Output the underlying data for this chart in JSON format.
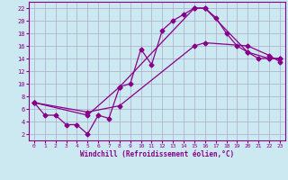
{
  "xlabel": "Windchill (Refroidissement éolien,°C)",
  "bg_color": "#cce8f0",
  "grid_color": "#aaaacc",
  "line_color": "#880088",
  "xlim": [
    -0.5,
    23.5
  ],
  "ylim": [
    1,
    23
  ],
  "xticks": [
    0,
    1,
    2,
    3,
    4,
    5,
    6,
    7,
    8,
    9,
    10,
    11,
    12,
    13,
    14,
    15,
    16,
    17,
    18,
    19,
    20,
    21,
    22,
    23
  ],
  "yticks": [
    2,
    4,
    6,
    8,
    10,
    12,
    14,
    16,
    18,
    20,
    22
  ],
  "curve1_x": [
    0,
    1,
    2,
    3,
    4,
    5,
    6,
    7,
    8,
    9,
    10,
    11,
    12,
    13,
    14,
    15,
    16,
    17,
    18,
    19,
    20,
    21,
    22,
    23
  ],
  "curve1_y": [
    7,
    5,
    5,
    3.5,
    3.5,
    2,
    5,
    4.5,
    9.5,
    10,
    15.5,
    13,
    18.5,
    20,
    21,
    22,
    22,
    20.5,
    18,
    16,
    15,
    14,
    14,
    14
  ],
  "curve2_x": [
    0,
    5,
    8,
    15,
    16,
    20,
    22,
    23
  ],
  "curve2_y": [
    7,
    5,
    9.5,
    22,
    22,
    15,
    14,
    14
  ],
  "curve3_x": [
    0,
    5,
    8,
    15,
    16,
    20,
    22,
    23
  ],
  "curve3_y": [
    7,
    5.5,
    6.5,
    16,
    16.5,
    16,
    14.5,
    13.5
  ]
}
